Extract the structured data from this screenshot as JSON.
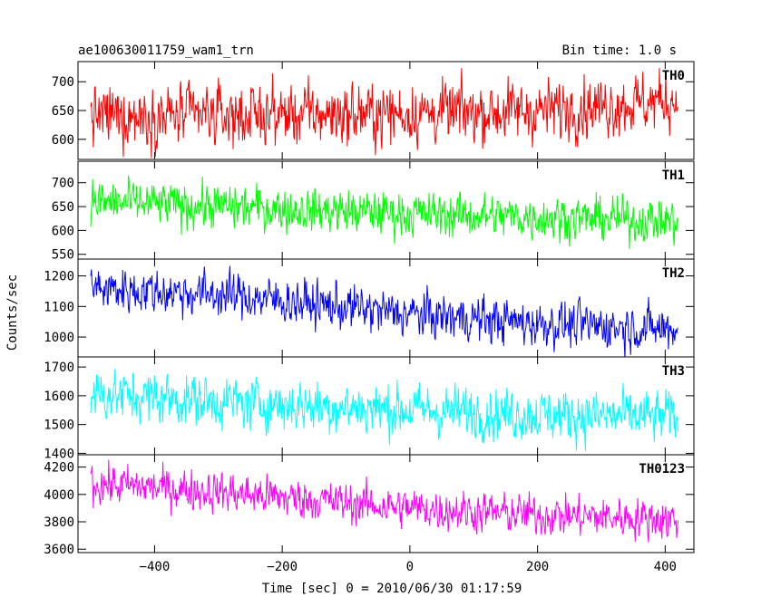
{
  "title": "ae100630011759_wam1_trn",
  "bin_time": "Bin time: 1.0 s",
  "chart_data": {
    "type": "line",
    "xlabel": "Time [sec] 0 = 2010/06/30 01:17:59",
    "ylabel": "Counts/sec",
    "xlim": [
      -520,
      445
    ],
    "xticks": [
      -400,
      -200,
      0,
      200,
      400
    ],
    "x_range": [
      -500,
      420
    ],
    "panels": [
      {
        "name": "TH0",
        "color": "#ff0000",
        "ylim": [
          565,
          735
        ],
        "yticks": [
          600,
          650,
          700
        ],
        "trend": [
          [
            -500,
            640
          ],
          [
            -200,
            643
          ],
          [
            0,
            645
          ],
          [
            200,
            650
          ],
          [
            420,
            668
          ]
        ],
        "noise": 32
      },
      {
        "name": "TH1",
        "color": "#00ff00",
        "ylim": [
          540,
          745
        ],
        "yticks": [
          550,
          600,
          650,
          700
        ],
        "trend": [
          [
            -500,
            660
          ],
          [
            -300,
            650
          ],
          [
            0,
            635
          ],
          [
            200,
            628
          ],
          [
            420,
            620
          ]
        ],
        "noise": 28
      },
      {
        "name": "TH2",
        "color": "#0000ff",
        "ylim": [
          935,
          1255
        ],
        "yticks": [
          1000,
          1100,
          1200
        ],
        "trend": [
          [
            -500,
            1160
          ],
          [
            -300,
            1140
          ],
          [
            0,
            1075
          ],
          [
            200,
            1045
          ],
          [
            420,
            1025
          ]
        ],
        "noise": 45
      },
      {
        "name": "TH3",
        "color": "#00ffff",
        "ylim": [
          1395,
          1735
        ],
        "yticks": [
          1400,
          1500,
          1600,
          1700
        ],
        "trend": [
          [
            -500,
            1610
          ],
          [
            -300,
            1580
          ],
          [
            0,
            1550
          ],
          [
            200,
            1535
          ],
          [
            420,
            1525
          ]
        ],
        "noise": 55
      },
      {
        "name": "TH0123",
        "color": "#ff00ff",
        "ylim": [
          3575,
          4290
        ],
        "yticks": [
          3600,
          3800,
          4000,
          4200
        ],
        "trend": [
          [
            -500,
            4080
          ],
          [
            -300,
            4020
          ],
          [
            0,
            3900
          ],
          [
            200,
            3850
          ],
          [
            420,
            3820
          ]
        ],
        "noise": 90
      }
    ]
  }
}
